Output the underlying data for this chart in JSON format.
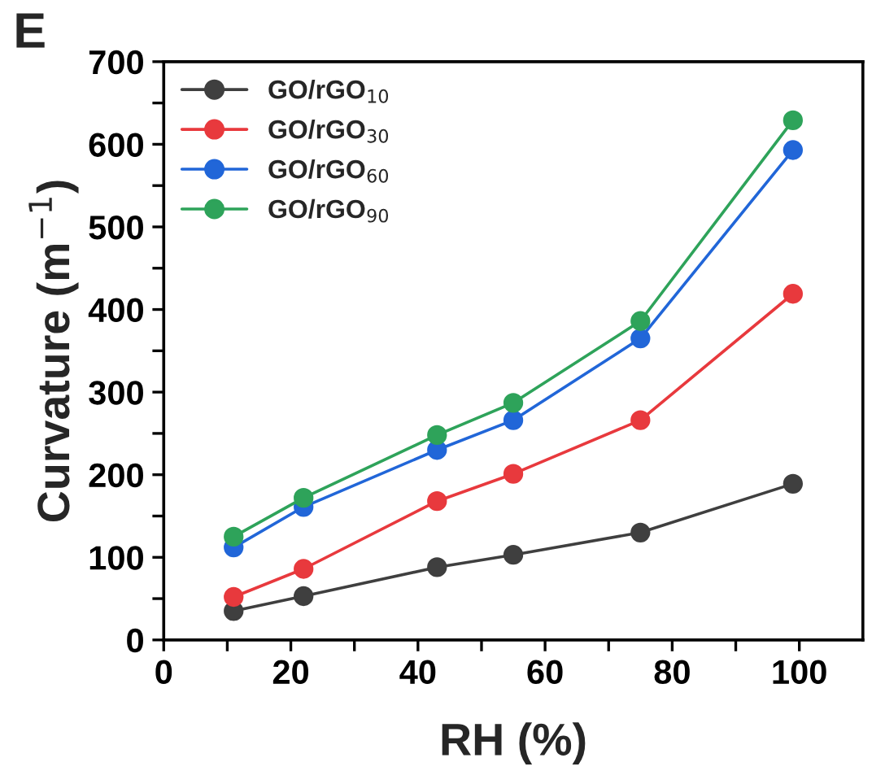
{
  "chart_data": {
    "type": "line",
    "xlabel": "RH (%)",
    "ylabel": "Curvature (m$^{−1}$)",
    "annotations": [
      "E"
    ],
    "x": [
      11,
      22,
      43,
      55,
      75,
      99
    ],
    "series": [
      {
        "name": "GO/rGO$_{10}$",
        "color": "#3f3f3f",
        "values": [
          35,
          53,
          88,
          103,
          130,
          189
        ]
      },
      {
        "name": "GO/rGO$_{30}$",
        "color": "#e8393d",
        "values": [
          52,
          86,
          168,
          201,
          266,
          419
        ]
      },
      {
        "name": "GO/rGO$_{60}$",
        "color": "#2166d8",
        "values": [
          112,
          161,
          230,
          266,
          365,
          593
        ]
      },
      {
        "name": "GO/rGO$_{90}$",
        "color": "#2ea35a",
        "values": [
          125,
          172,
          248,
          287,
          386,
          629
        ]
      }
    ],
    "xlim": [
      0,
      110
    ],
    "xticks": [
      0,
      {
        "value": 10,
        "label": null
      },
      20,
      {
        "value": 30,
        "label": null
      },
      40,
      {
        "value": 50,
        "label": null
      },
      60,
      {
        "value": 70,
        "label": null
      },
      80,
      {
        "value": 90,
        "label": null
      },
      100
    ],
    "ylim": [
      0,
      700
    ],
    "yticks": [
      0,
      {
        "value": 50,
        "label": null
      },
      100,
      {
        "value": 150,
        "label": null
      },
      200,
      {
        "value": 250,
        "label": null
      },
      300,
      {
        "value": 350,
        "label": null
      },
      400,
      {
        "value": 450,
        "label": null
      },
      500,
      {
        "value": 550,
        "label": null
      },
      600,
      {
        "value": 650,
        "label": null
      },
      700
    ],
    "marker": "circle",
    "line_style": "solid",
    "legend": "top left",
    "grid": false
  }
}
